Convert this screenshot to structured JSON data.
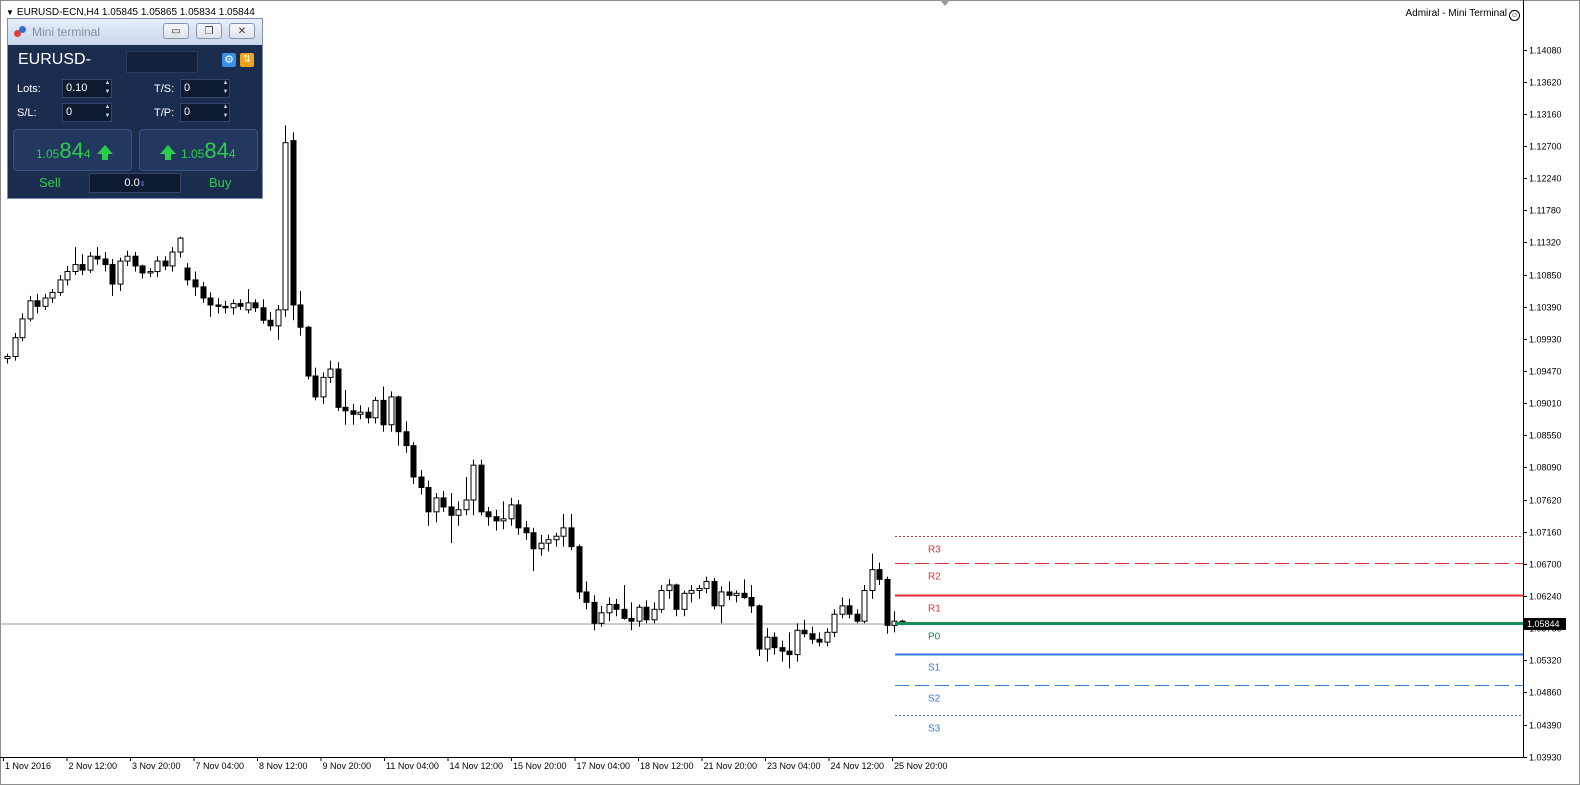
{
  "chart": {
    "title": "EURUSD-ECN,H4  1.05845 1.05865 1.05834 1.05844",
    "top_right": "Admiral - Mini Terminal",
    "smile_icon": "☺",
    "current_price_label": "1.05844",
    "price_labels": [
      "1.14080",
      "1.13620",
      "1.13160",
      "1.12700",
      "1.12240",
      "1.11780",
      "1.11320",
      "1.10850",
      "1.10390",
      "1.09930",
      "1.09470",
      "1.09010",
      "1.08550",
      "1.08090",
      "1.07620",
      "1.07160",
      "1.06700",
      "1.06240",
      "1.05780",
      "1.05320",
      "1.04860",
      "1.04390",
      "1.03930"
    ],
    "time_labels": [
      "1 Nov 2016",
      "2 Nov 12:00",
      "3 Nov 20:00",
      "7 Nov 04:00",
      "8 Nov 12:00",
      "9 Nov 20:00",
      "11 Nov 04:00",
      "14 Nov 12:00",
      "15 Nov 20:00",
      "17 Nov 04:00",
      "18 Nov 12:00",
      "21 Nov 20:00",
      "23 Nov 04:00",
      "24 Nov 12:00",
      "25 Nov 20:00"
    ]
  },
  "chart_data": {
    "type": "candlestick",
    "symbol": "EURUSD-ECN",
    "timeframe": "H4",
    "ylim": [
      1.0393,
      1.1454
    ],
    "levels": [
      {
        "name": "R3",
        "value": 1.0711,
        "color": "#e03030",
        "style": "dotted"
      },
      {
        "name": "R2",
        "value": 1.0671,
        "color": "#e03030",
        "style": "dashed"
      },
      {
        "name": "R1",
        "value": 1.0626,
        "color": "#e03030",
        "style": "solid"
      },
      {
        "name": "P0",
        "value": 1.0585,
        "color": "#1a8c5a",
        "style": "solid"
      },
      {
        "name": "S1",
        "value": 1.0541,
        "color": "#2f7be0",
        "style": "solid"
      },
      {
        "name": "S2",
        "value": 1.0497,
        "color": "#2f7be0",
        "style": "dashed"
      },
      {
        "name": "S3",
        "value": 1.0454,
        "color": "#2f7be0",
        "style": "dotted"
      }
    ],
    "candles": [
      [
        1.0965,
        1.0972,
        1.0958,
        1.0968
      ],
      [
        1.0968,
        1.1002,
        1.0962,
        1.0995
      ],
      [
        1.0995,
        1.103,
        1.099,
        1.1022
      ],
      [
        1.1022,
        1.1055,
        1.1018,
        1.1048
      ],
      [
        1.1048,
        1.1058,
        1.103,
        1.104
      ],
      [
        1.104,
        1.1058,
        1.1035,
        1.1052
      ],
      [
        1.1052,
        1.1065,
        1.1045,
        1.106
      ],
      [
        1.106,
        1.1085,
        1.1055,
        1.1078
      ],
      [
        1.1078,
        1.1098,
        1.107,
        1.109
      ],
      [
        1.109,
        1.1125,
        1.1085,
        1.11
      ],
      [
        1.11,
        1.1115,
        1.1085,
        1.1092
      ],
      [
        1.1092,
        1.1118,
        1.1088,
        1.1112
      ],
      [
        1.1112,
        1.1125,
        1.11,
        1.1108
      ],
      [
        1.1108,
        1.1118,
        1.109,
        1.11
      ],
      [
        1.11,
        1.1108,
        1.1055,
        1.1072
      ],
      [
        1.1072,
        1.111,
        1.1062,
        1.1105
      ],
      [
        1.1105,
        1.112,
        1.1098,
        1.1112
      ],
      [
        1.1112,
        1.1118,
        1.109,
        1.1098
      ],
      [
        1.1098,
        1.11,
        1.108,
        1.1088
      ],
      [
        1.1088,
        1.1095,
        1.1082,
        1.109
      ],
      [
        1.109,
        1.1112,
        1.1082,
        1.1105
      ],
      [
        1.1105,
        1.1112,
        1.1092,
        1.1098
      ],
      [
        1.1098,
        1.1125,
        1.109,
        1.1118
      ],
      [
        1.1118,
        1.114,
        1.111,
        1.1138
      ],
      [
        1.1095,
        1.1102,
        1.107,
        1.1078
      ],
      [
        1.1078,
        1.109,
        1.1055,
        1.1068
      ],
      [
        1.1068,
        1.1075,
        1.1045,
        1.1052
      ],
      [
        1.1052,
        1.106,
        1.1025,
        1.1042
      ],
      [
        1.1042,
        1.1052,
        1.103,
        1.104
      ],
      [
        1.104,
        1.1048,
        1.103,
        1.1038
      ],
      [
        1.1038,
        1.105,
        1.1028,
        1.1044
      ],
      [
        1.1044,
        1.105,
        1.1035,
        1.104
      ],
      [
        1.1035,
        1.1065,
        1.103,
        1.1045
      ],
      [
        1.1045,
        1.105,
        1.1032,
        1.1038
      ],
      [
        1.1038,
        1.105,
        1.1015,
        1.102
      ],
      [
        1.102,
        1.1032,
        1.1005,
        1.1012
      ],
      [
        1.1012,
        1.1042,
        1.0992,
        1.1035
      ],
      [
        1.1035,
        1.13,
        1.1025,
        1.1275
      ],
      [
        1.1278,
        1.129,
        1.102,
        1.1042
      ],
      [
        1.1042,
        1.1062,
        1.0998,
        1.101
      ],
      [
        1.101,
        1.1012,
        1.0935,
        1.094
      ],
      [
        1.094,
        1.0952,
        1.0905,
        1.091
      ],
      [
        1.091,
        1.0945,
        1.09,
        1.0938
      ],
      [
        1.0938,
        1.0962,
        1.093,
        1.095
      ],
      [
        1.095,
        1.096,
        1.089,
        1.0895
      ],
      [
        1.0895,
        1.092,
        1.087,
        1.089
      ],
      [
        1.089,
        1.09,
        1.087,
        1.0885
      ],
      [
        1.0885,
        1.0898,
        1.0878,
        1.0888
      ],
      [
        1.0888,
        1.0895,
        1.0872,
        1.088
      ],
      [
        1.088,
        1.091,
        1.0872,
        1.0905
      ],
      [
        1.0905,
        1.0925,
        1.086,
        1.087
      ],
      [
        1.087,
        1.0918,
        1.086,
        1.091
      ],
      [
        1.091,
        1.0912,
        1.084,
        1.086
      ],
      [
        1.086,
        1.0875,
        1.083,
        1.084
      ],
      [
        1.084,
        1.0845,
        1.0785,
        1.0795
      ],
      [
        1.0795,
        1.0805,
        1.077,
        1.078
      ],
      [
        1.078,
        1.079,
        1.0725,
        1.0745
      ],
      [
        1.0745,
        1.0772,
        1.073,
        1.0765
      ],
      [
        1.0765,
        1.0775,
        1.0745,
        1.0752
      ],
      [
        1.0752,
        1.0772,
        1.07,
        1.074
      ],
      [
        1.074,
        1.076,
        1.0725,
        1.0748
      ],
      [
        1.0748,
        1.0795,
        1.074,
        1.0762
      ],
      [
        1.0762,
        1.082,
        1.074,
        1.0812
      ],
      [
        1.0812,
        1.082,
        1.074,
        1.0745
      ],
      [
        1.0745,
        1.0752,
        1.0725,
        1.0738
      ],
      [
        1.0738,
        1.0748,
        1.0718,
        1.0732
      ],
      [
        1.0732,
        1.076,
        1.072,
        1.0735
      ],
      [
        1.0735,
        1.0765,
        1.0725,
        1.0755
      ],
      [
        1.0755,
        1.0762,
        1.0712,
        1.0722
      ],
      [
        1.0722,
        1.0732,
        1.0705,
        1.0715
      ],
      [
        1.0715,
        1.0722,
        1.066,
        1.0692
      ],
      [
        1.0692,
        1.0712,
        1.0682,
        1.07
      ],
      [
        1.07,
        1.0712,
        1.0688,
        1.0705
      ],
      [
        1.0705,
        1.0715,
        1.0695,
        1.071
      ],
      [
        1.071,
        1.0742,
        1.0695,
        1.0722
      ],
      [
        1.0722,
        1.0742,
        1.069,
        1.0695
      ],
      [
        1.0695,
        1.0698,
        1.062,
        1.063
      ],
      [
        1.063,
        1.0645,
        1.0605,
        1.0615
      ],
      [
        1.0615,
        1.0625,
        1.0575,
        1.0585
      ],
      [
        1.0585,
        1.061,
        1.058,
        1.06
      ],
      [
        1.06,
        1.0622,
        1.0588,
        1.0612
      ],
      [
        1.0612,
        1.062,
        1.0595,
        1.0605
      ],
      [
        1.0605,
        1.064,
        1.059,
        1.0592
      ],
      [
        1.0592,
        1.0615,
        1.0575,
        1.0588
      ],
      [
        1.0588,
        1.0612,
        1.058,
        1.0608
      ],
      [
        1.0608,
        1.0618,
        1.0585,
        1.059
      ],
      [
        1.059,
        1.0615,
        1.0585,
        1.0605
      ],
      [
        1.0605,
        1.064,
        1.06,
        1.0632
      ],
      [
        1.0632,
        1.0648,
        1.062,
        1.064
      ],
      [
        1.064,
        1.0642,
        1.0595,
        1.0605
      ],
      [
        1.0605,
        1.0632,
        1.0595,
        1.0628
      ],
      [
        1.0628,
        1.064,
        1.0615,
        1.0632
      ],
      [
        1.0632,
        1.064,
        1.062,
        1.0635
      ],
      [
        1.0635,
        1.0652,
        1.0628,
        1.0645
      ],
      [
        1.0645,
        1.065,
        1.0605,
        1.061
      ],
      [
        1.061,
        1.0638,
        1.0585,
        1.063
      ],
      [
        1.063,
        1.0645,
        1.0618,
        1.0625
      ],
      [
        1.0625,
        1.0632,
        1.0615,
        1.0628
      ],
      [
        1.0628,
        1.0648,
        1.062,
        1.0622
      ],
      [
        1.0622,
        1.064,
        1.06,
        1.061
      ],
      [
        1.061,
        1.0612,
        1.0538,
        1.0548
      ],
      [
        1.0548,
        1.0578,
        1.053,
        1.0565
      ],
      [
        1.0565,
        1.0572,
        1.054,
        1.055
      ],
      [
        1.055,
        1.056,
        1.053,
        1.0545
      ],
      [
        1.0545,
        1.0572,
        1.052,
        1.054
      ],
      [
        1.054,
        1.0585,
        1.053,
        1.0575
      ],
      [
        1.0575,
        1.059,
        1.0565,
        1.057
      ],
      [
        1.057,
        1.058,
        1.0555,
        1.0562
      ],
      [
        1.0562,
        1.0572,
        1.0552,
        1.0558
      ],
      [
        1.0558,
        1.0578,
        1.0552,
        1.0572
      ],
      [
        1.0572,
        1.0605,
        1.0565,
        1.0598
      ],
      [
        1.0598,
        1.0622,
        1.0592,
        1.061
      ],
      [
        1.061,
        1.062,
        1.0592,
        1.0598
      ],
      [
        1.0598,
        1.0605,
        1.0585,
        1.0588
      ],
      [
        1.0588,
        1.064,
        1.0585,
        1.0632
      ],
      [
        1.0632,
        1.0685,
        1.062,
        1.0662
      ],
      [
        1.0662,
        1.0672,
        1.064,
        1.0648
      ],
      [
        1.0648,
        1.0652,
        1.057,
        1.0582
      ],
      [
        1.0582,
        1.0602,
        1.0572,
        1.0588
      ],
      [
        1.0588,
        1.059,
        1.0582,
        1.0584
      ]
    ]
  },
  "mini_terminal": {
    "title": "Mini terminal",
    "symbol": "EURUSD-",
    "minimize_icon": "▭",
    "restore_icon": "❐",
    "close_icon": "✕",
    "gear_icon": "⚙",
    "swap_icon": "⇅",
    "spin_up": "▲",
    "spin_down": "▼",
    "lots_label": "Lots:",
    "lots_value": "0.10",
    "ts_label": "T/S:",
    "ts_value": "0",
    "sl_label": "S/L:",
    "sl_value": "0",
    "tp_label": "T/P:",
    "tp_value": "0",
    "sell_price_small": "1.05",
    "sell_price_big": "84",
    "sell_price_tail": "4",
    "buy_price_small": "1.05",
    "buy_price_big": "84",
    "buy_price_tail": "4",
    "sell_label": "Sell",
    "buy_label": "Buy",
    "spread_value": "0.0",
    "spread_icon": "⇕"
  }
}
